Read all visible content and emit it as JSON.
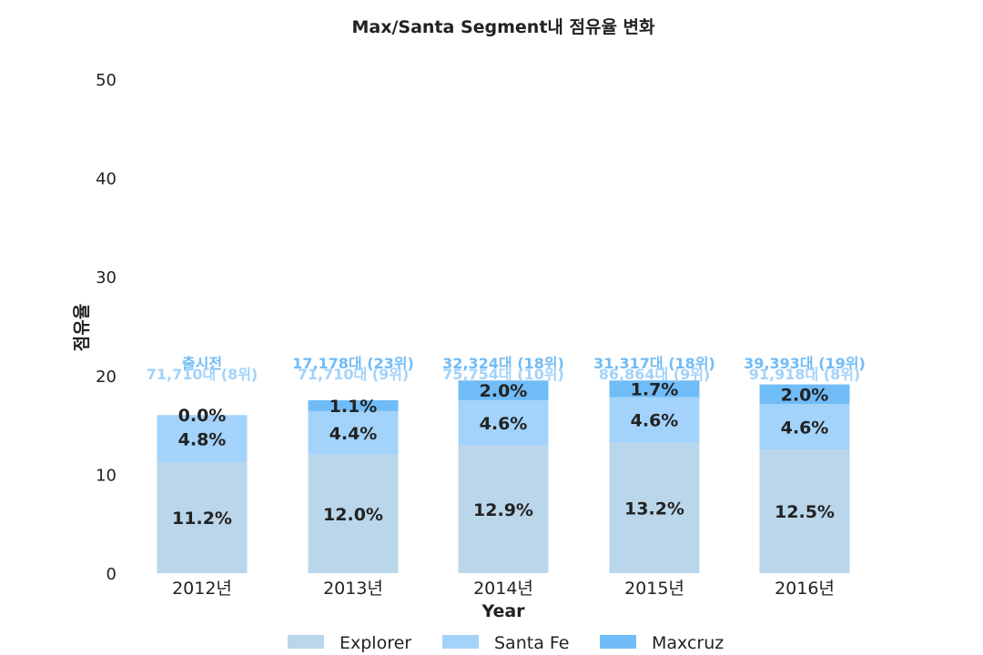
{
  "chart_data": {
    "type": "bar",
    "stacked": true,
    "title": "Max/Santa Segment내 점유율 변화",
    "xlabel": "Year",
    "ylabel": "점유율",
    "ylim": [
      0,
      50
    ],
    "yticks": [
      "0",
      "10",
      "20",
      "30",
      "40",
      "50"
    ],
    "categories": [
      "2012년",
      "2013년",
      "2014년",
      "2015년",
      "2016년"
    ],
    "series": [
      {
        "name": "Explorer",
        "color": "#bad6eb",
        "values": [
          11.2,
          12.0,
          12.9,
          13.2,
          12.5
        ],
        "labels": [
          "11.2%",
          "12.0%",
          "12.9%",
          "13.2%",
          "12.5%"
        ]
      },
      {
        "name": "Santa Fe",
        "color": "#a3d3fa",
        "values": [
          4.8,
          4.4,
          4.6,
          4.6,
          4.6
        ],
        "labels": [
          "4.8%",
          "4.4%",
          "4.6%",
          "4.6%",
          "4.6%"
        ]
      },
      {
        "name": "Maxcruz",
        "color": "#70bcf7",
        "values": [
          0.0,
          1.1,
          2.0,
          1.7,
          2.0
        ],
        "labels": [
          "0.0%",
          "1.1%",
          "2.0%",
          "1.7%",
          "2.0%"
        ]
      }
    ],
    "annotations": {
      "maxcruz": {
        "color": "#70bcf7",
        "texts": [
          "출시전",
          "17,178대 (23위)",
          "32,324대 (18위)",
          "31,317대 (18위)",
          "39,393대 (19위)"
        ]
      },
      "santafe": {
        "color": "#a3d3fa",
        "texts": [
          "71,710대 (8위)",
          "71,710대 (9위)",
          "75,754대 (10위)",
          "86,864대 (9위)",
          "91,918대 (8위)"
        ]
      }
    },
    "grid": false,
    "legend_position": "bottom-center"
  }
}
